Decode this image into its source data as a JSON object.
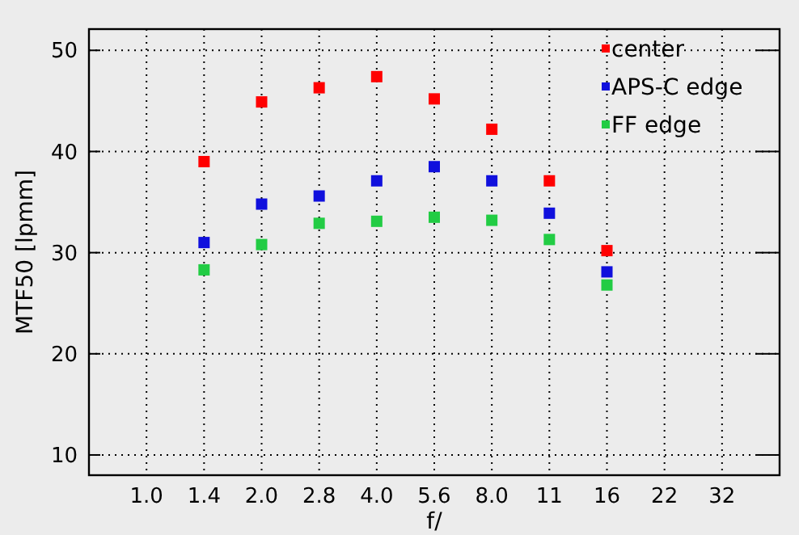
{
  "chart_data": {
    "type": "scatter",
    "xlabel": "f/",
    "ylabel": "MTF50 [lpmm]",
    "categories": [
      "1.0",
      "1.4",
      "2.0",
      "2.8",
      "4.0",
      "5.6",
      "8.0",
      "11",
      "16",
      "22",
      "32"
    ],
    "series": [
      {
        "name": "center",
        "color": "#ff0000",
        "values": [
          null,
          39.0,
          44.9,
          46.3,
          47.4,
          45.2,
          42.2,
          37.1,
          30.2,
          null,
          null
        ]
      },
      {
        "name": "APS-C edge",
        "color": "#1010dd",
        "values": [
          null,
          31.0,
          34.8,
          35.6,
          37.1,
          38.5,
          37.1,
          33.9,
          28.1,
          null,
          null
        ]
      },
      {
        "name": "FF edge",
        "color": "#22cc44",
        "values": [
          null,
          28.3,
          30.8,
          32.9,
          33.1,
          33.5,
          33.2,
          31.3,
          26.8,
          null,
          null
        ]
      }
    ],
    "ylim": [
      8,
      52.1
    ],
    "yticks": [
      10,
      20,
      30,
      40,
      50
    ],
    "grid": true,
    "legend": "top right",
    "marker": "square"
  }
}
